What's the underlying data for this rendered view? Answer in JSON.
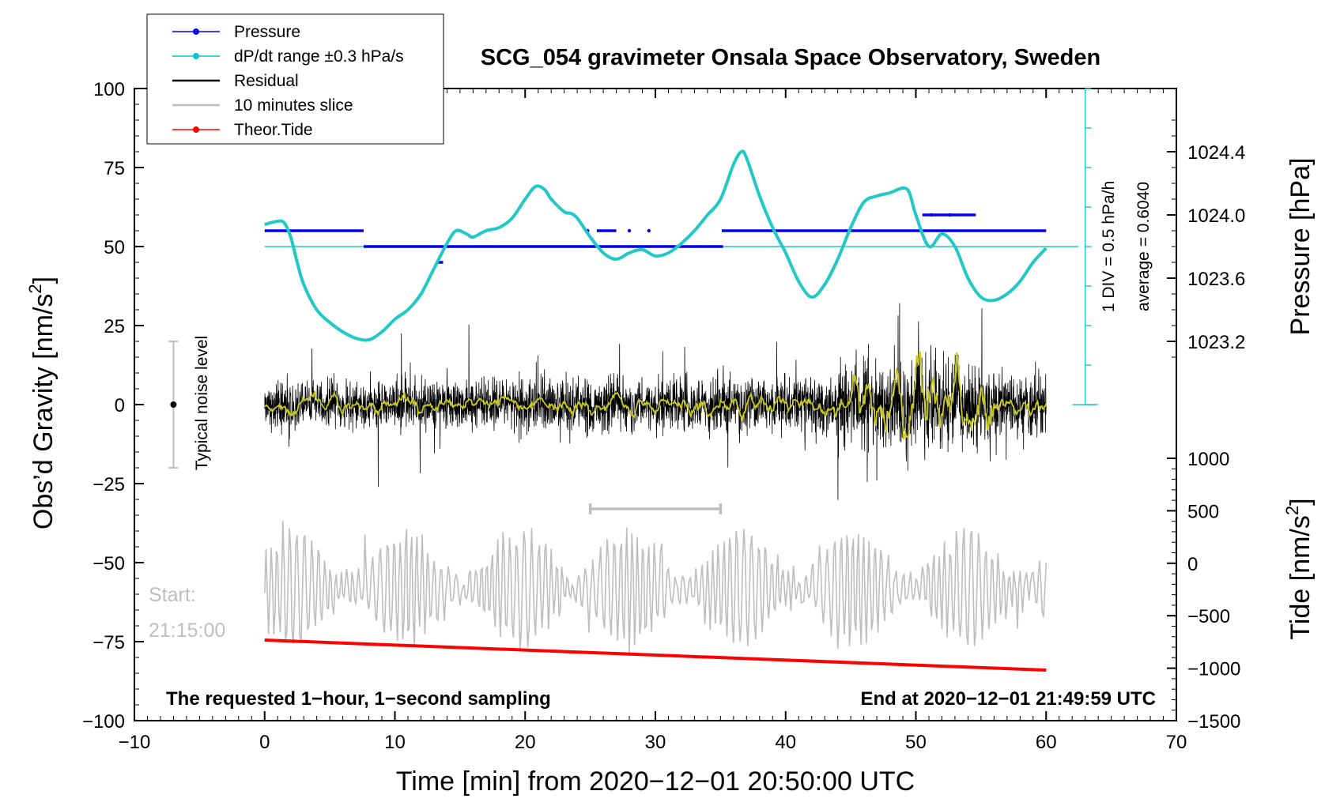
{
  "chart_data": {
    "type": "line",
    "title": "SCG_054 gravimeter Onsala Space Observatory, Sweden",
    "xlabel": "Time [min] from 2020−12−01 20:50:00 UTC",
    "ylabel_left": "Obs’d Gravity [nm/s²]",
    "ylabel_left_main": "Obs’d Gravity [nm/s",
    "ylabel_left_sup": "2",
    "ylabel_left_end": "]",
    "ylabel_right_top": "Pressure [hPa]",
    "ylabel_right_bottom": "Tide [nm/s²]",
    "ylabel_right_bottom_main": "Tide [nm/s",
    "ylabel_right_bottom_sup": "2",
    "ylabel_right_bottom_end": "]",
    "xlim": [
      -10,
      70
    ],
    "ylim": [
      -100,
      100
    ],
    "xticks": [
      -10,
      0,
      10,
      20,
      30,
      40,
      50,
      60,
      70
    ],
    "xtick_labels": [
      "−10",
      "0",
      "10",
      "20",
      "30",
      "40",
      "50",
      "60",
      "70"
    ],
    "yticks": [
      -100,
      -75,
      -50,
      -25,
      0,
      25,
      50,
      75,
      100
    ],
    "ytick_labels": [
      "−100",
      "−75",
      "−50",
      "−25",
      "0",
      "25",
      "50",
      "75",
      "100"
    ],
    "pressure_axis": {
      "ticks": [
        1023.2,
        1023.6,
        1024.0,
        1024.4
      ],
      "tick_labels": [
        "1023.2",
        "1023.6",
        "1024.0",
        "1024.4"
      ],
      "mapping": [
        [
          1023.2,
          20
        ],
        [
          1024.4,
          80
        ]
      ]
    },
    "tide_axis": {
      "ticks": [
        -1500,
        -1000,
        -500,
        0,
        500,
        1000
      ],
      "tick_labels": [
        "−1500",
        "−1000",
        "−500",
        "0",
        "500",
        "1000"
      ],
      "mapping": [
        [
          -1500,
          -100
        ],
        [
          1000,
          -17
        ]
      ]
    },
    "legend": [
      {
        "label": "Pressure",
        "color": "#0000ee",
        "marker": true
      },
      {
        "label": "dP/dt range ±0.3 hPa/s",
        "color": "#00c8c8",
        "marker": true
      },
      {
        "label": "Residual",
        "color": "#000000",
        "marker": false
      },
      {
        "label": "10 minutes slice",
        "color": "#bebebe",
        "marker": false
      },
      {
        "label": "Theor.Tide",
        "color": "#ff0000",
        "marker": true
      }
    ],
    "pressure_curve": {
      "name": "dP/dt range ±0.3 hPa/s",
      "color": "#20c8c8",
      "x": [
        0,
        1,
        1.5,
        2,
        2.5,
        3,
        4,
        5,
        6,
        7,
        8,
        9,
        10,
        11,
        12,
        13,
        14,
        14.7,
        15.5,
        16,
        17,
        18,
        19,
        20,
        20.8,
        21.5,
        22,
        23,
        23.5,
        24,
        25,
        26,
        27,
        28,
        29,
        30,
        31,
        32,
        33,
        34,
        35,
        36,
        36.6,
        37,
        38,
        39,
        40,
        41,
        42,
        43,
        44,
        45,
        46,
        47,
        48,
        49,
        49.5,
        50,
        51,
        52,
        53,
        54,
        55,
        56,
        57,
        58,
        59,
        60
      ],
      "y": [
        57,
        58,
        57.5,
        53,
        45,
        38,
        30,
        26,
        23,
        21,
        20.5,
        23,
        27,
        30,
        35,
        43,
        51,
        55,
        54,
        53,
        55,
        56,
        59,
        65,
        69,
        68,
        65,
        61,
        60.5,
        59,
        53,
        48,
        46,
        48,
        49,
        47,
        48,
        51,
        55,
        60,
        65,
        76,
        80,
        78,
        66,
        56,
        48,
        39,
        34,
        38,
        46,
        56,
        64,
        66,
        67,
        68.5,
        67,
        60,
        50,
        54,
        50,
        40,
        34,
        33,
        35,
        39,
        45,
        49.5
      ]
    },
    "pressure_average_y": 50,
    "pressure_segments": [
      {
        "x0": 0,
        "x1": 7.6,
        "y": 55
      },
      {
        "x0": 7.6,
        "x1": 35.2,
        "y": 50
      },
      {
        "x0": 35.1,
        "x1": 60,
        "y": 55
      },
      {
        "x0": 25.5,
        "x1": 27,
        "y": 55
      },
      {
        "x0": 50.5,
        "x1": 54.6,
        "y": 60
      },
      {
        "x0": 13.2,
        "x1": 13.7,
        "y": 45
      }
    ],
    "pressure_dots": [
      [
        28,
        55
      ],
      [
        29.5,
        55
      ],
      [
        24.8,
        55
      ],
      [
        52.6,
        60
      ],
      [
        51.2,
        60
      ]
    ],
    "tide_curve": {
      "name": "Theor.Tide",
      "x0": 0,
      "y0": -74.5,
      "x1": 60,
      "y1": -84
    },
    "residual": {
      "name": "Residual",
      "x_range": [
        0,
        60
      ],
      "points": 3600,
      "color": "#000000"
    },
    "smoothed": {
      "name": "Smoothed residual",
      "color": "#c8c81e"
    },
    "slice": {
      "name": "10 minutes slice",
      "color": "#bebebe",
      "baseline": -58
    },
    "slice_marker": {
      "x0": 25,
      "x1": 35,
      "y": -33
    },
    "pressure_scale_bar": {
      "x": 63,
      "y0": 0,
      "y1": 100,
      "div": 12.5
    },
    "noise_bar": {
      "x": -7,
      "y0": -20,
      "y1": 20,
      "label": "Typical noise level"
    },
    "scale_labels": [
      "1 DIV = 0.5 hPa/h",
      "average = 0.6040"
    ],
    "start_label": "Start:",
    "start_time": "21:15:00",
    "footer_left": "The requested 1−hour, 1−second sampling",
    "footer_right": "End at 2020−12−01 21:49:59 UTC"
  }
}
